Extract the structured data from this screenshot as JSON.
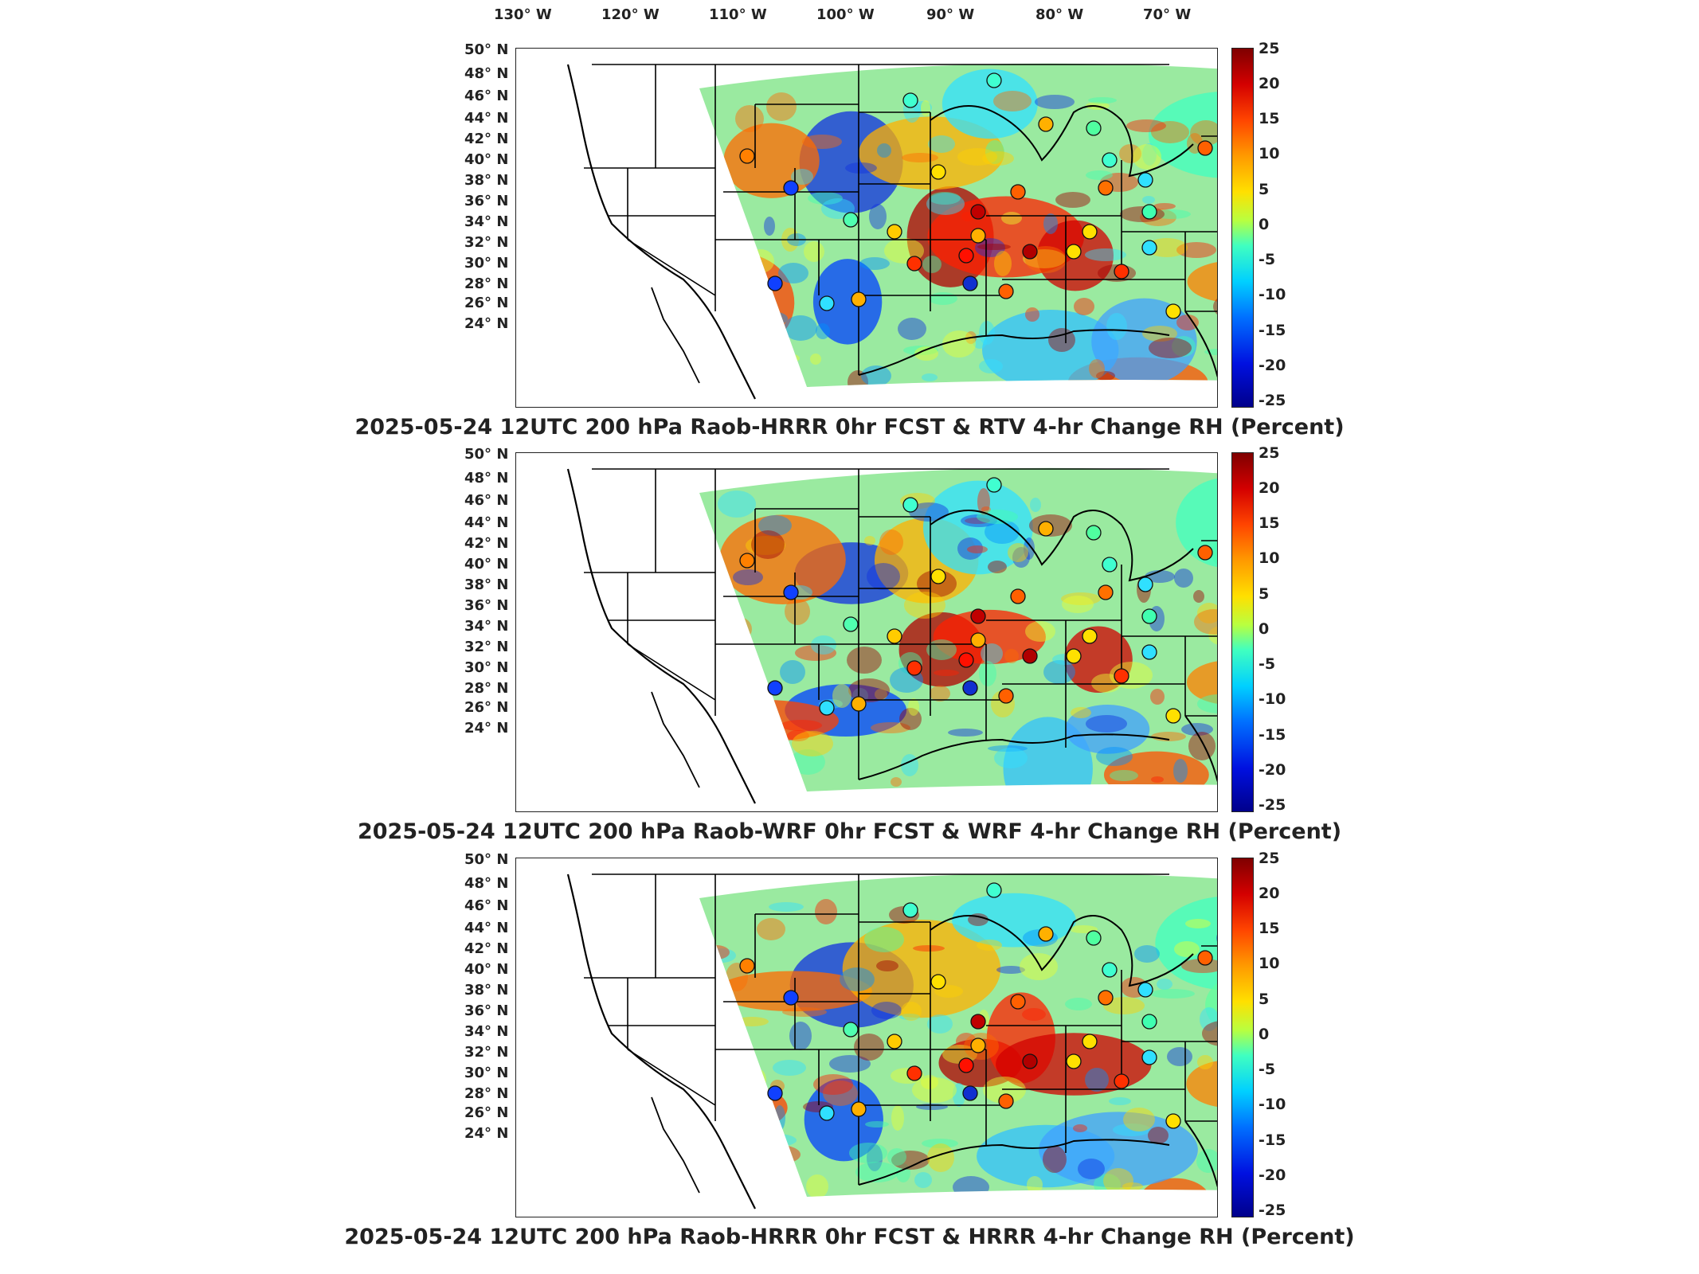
{
  "lon_labels": [
    "130° W",
    "120° W",
    "110° W",
    "100° W",
    "90° W",
    "80° W",
    "70° W"
  ],
  "lat_labels": [
    "50° N",
    "48° N",
    "46° N",
    "44° N",
    "42° N",
    "40° N",
    "38° N",
    "36° N",
    "34° N",
    "32° N",
    "30° N",
    "28° N",
    "26° N",
    "24° N"
  ],
  "colorbar_ticks": [
    "25",
    "20",
    "15",
    "10",
    "5",
    "0",
    "-5",
    "-10",
    "-15",
    "-20",
    "-25"
  ],
  "panels": [
    {
      "title": "2025-05-24 12UTC 200 hPa Raob-HRRR 0hr FCST & RTV 4-hr Change RH (Percent)"
    },
    {
      "title": "2025-05-24 12UTC 200 hPa Raob-WRF 0hr FCST & WRF 4-hr Change RH (Percent)"
    },
    {
      "title": "2025-05-24 12UTC 200 hPa Raob-HRRR 0hr FCST & HRRR 4-hr Change RH (Percent)"
    }
  ],
  "colors": {
    "cbar_max": "#7f0000",
    "cbar_mid": "#b8ff40",
    "cbar_min": "#00008b",
    "domain_base": "#9aeaa0"
  }
}
